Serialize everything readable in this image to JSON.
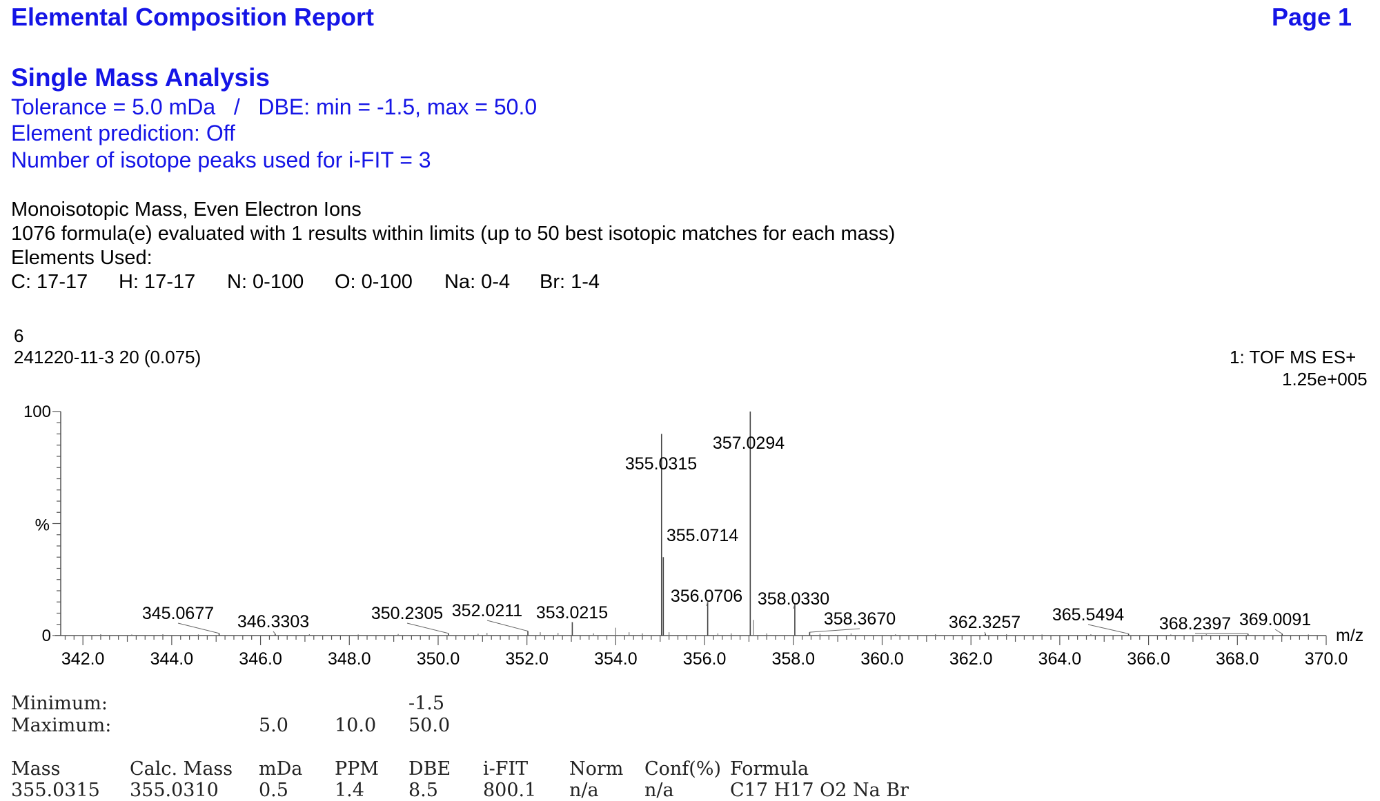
{
  "header": {
    "title": "Elemental Composition Report",
    "page": "Page 1"
  },
  "analysis": {
    "heading": "Single Mass Analysis",
    "tolerance_line": "Tolerance = 5.0 mDa   /   DBE: min = -1.5, max = 50.0",
    "element_prediction": "Element prediction: Off",
    "isotope_peaks": "Number of isotope peaks used for i-FIT = 3"
  },
  "info": {
    "mass_type": "Monoisotopic Mass, Even Electron Ions",
    "evaluated": "1076 formula(e) evaluated with 1 results within limits (up to 50 best isotopic matches for each mass)",
    "elements_used_label": "Elements Used:",
    "elements": [
      {
        "text": "C: 17-17"
      },
      {
        "text": "H: 17-17"
      },
      {
        "text": "N: 0-100"
      },
      {
        "text": "O: 0-100"
      },
      {
        "text": "Na: 0-4"
      },
      {
        "text": "Br: 1-4"
      }
    ]
  },
  "spectrum": {
    "sample_no": "6",
    "sample_id": "241220-11-3 20 (0.075)",
    "mode": "1: TOF MS ES+",
    "intensity": "1.25e+005"
  },
  "chart_data": {
    "type": "bar",
    "xlabel": "m/z",
    "ylabel": "%",
    "xlim": [
      341.5,
      370.0
    ],
    "ylim": [
      0,
      100
    ],
    "x_ticks": [
      342.0,
      344.0,
      346.0,
      348.0,
      350.0,
      352.0,
      354.0,
      356.0,
      358.0,
      360.0,
      362.0,
      364.0,
      366.0,
      368.0,
      370.0
    ],
    "x_tick_labels": [
      "342.0",
      "344.0",
      "346.0",
      "348.0",
      "350.0",
      "352.0",
      "354.0",
      "356.0",
      "358.0",
      "360.0",
      "362.0",
      "364.0",
      "366.0",
      "368.0",
      "370.0"
    ],
    "y_tick_labels": [
      "0",
      "100"
    ],
    "peaks": [
      {
        "mz": 345.0677,
        "intensity": 1.0,
        "label": "345.0677"
      },
      {
        "mz": 346.3303,
        "intensity": 0.8,
        "label": "346.3303"
      },
      {
        "mz": 350.2305,
        "intensity": 1.0,
        "label": "350.2305"
      },
      {
        "mz": 352.0211,
        "intensity": 2.0,
        "label": "352.0211"
      },
      {
        "mz": 353.0215,
        "intensity": 6.0,
        "label": "353.0215"
      },
      {
        "mz": 355.0315,
        "intensity": 90.0,
        "label": "355.0315"
      },
      {
        "mz": 355.0714,
        "intensity": 35.0,
        "label": "355.0714"
      },
      {
        "mz": 356.0706,
        "intensity": 15.0,
        "label": "356.0706"
      },
      {
        "mz": 357.0294,
        "intensity": 100.0,
        "label": "357.0294"
      },
      {
        "mz": 358.033,
        "intensity": 14.0,
        "label": "358.0330"
      },
      {
        "mz": 358.367,
        "intensity": 1.5,
        "label": "358.3670"
      },
      {
        "mz": 362.3257,
        "intensity": 0.8,
        "label": "362.3257"
      },
      {
        "mz": 365.5494,
        "intensity": 0.8,
        "label": "365.5494"
      },
      {
        "mz": 368.2397,
        "intensity": 0.8,
        "label": "368.2397"
      },
      {
        "mz": 369.0091,
        "intensity": 0.8,
        "label": "369.0091"
      }
    ],
    "minor_peaks": [
      {
        "mz": 342.4,
        "intensity": 0.6
      },
      {
        "mz": 343.1,
        "intensity": 0.5
      },
      {
        "mz": 343.8,
        "intensity": 0.6
      },
      {
        "mz": 344.6,
        "intensity": 0.5
      },
      {
        "mz": 347.1,
        "intensity": 0.6
      },
      {
        "mz": 348.2,
        "intensity": 0.5
      },
      {
        "mz": 349.1,
        "intensity": 0.7
      },
      {
        "mz": 350.9,
        "intensity": 0.8
      },
      {
        "mz": 351.1,
        "intensity": 1.2
      },
      {
        "mz": 352.3,
        "intensity": 1.5
      },
      {
        "mz": 352.7,
        "intensity": 1.2
      },
      {
        "mz": 353.5,
        "intensity": 1.0
      },
      {
        "mz": 354.0,
        "intensity": 3.5
      },
      {
        "mz": 354.3,
        "intensity": 1.5
      },
      {
        "mz": 354.6,
        "intensity": 1.0
      },
      {
        "mz": 355.2,
        "intensity": 1.5
      },
      {
        "mz": 356.3,
        "intensity": 1.0
      },
      {
        "mz": 356.6,
        "intensity": 1.0
      },
      {
        "mz": 357.1,
        "intensity": 7.0
      },
      {
        "mz": 357.4,
        "intensity": 1.0
      },
      {
        "mz": 358.6,
        "intensity": 0.8
      },
      {
        "mz": 359.3,
        "intensity": 1.0
      },
      {
        "mz": 360.3,
        "intensity": 0.6
      },
      {
        "mz": 361.2,
        "intensity": 0.6
      },
      {
        "mz": 362.8,
        "intensity": 0.6
      },
      {
        "mz": 363.6,
        "intensity": 0.5
      },
      {
        "mz": 364.7,
        "intensity": 0.6
      },
      {
        "mz": 366.5,
        "intensity": 0.5
      },
      {
        "mz": 367.3,
        "intensity": 0.6
      },
      {
        "mz": 369.6,
        "intensity": 0.5
      }
    ]
  },
  "limits": {
    "minimum_label": "Minimum:",
    "maximum_label": "Maximum:",
    "min_dbe": "-1.5",
    "max_mda": "5.0",
    "max_ppm": "10.0",
    "max_dbe": "50.0"
  },
  "results": {
    "columns": [
      "Mass",
      "Calc. Mass",
      "mDa",
      "PPM",
      "DBE",
      "i-FIT",
      "Norm",
      "Conf(%)",
      "Formula"
    ],
    "rows": [
      [
        "355.0315",
        "355.0310",
        "0.5",
        "1.4",
        "8.5",
        "800.1",
        "n/a",
        "n/a",
        "C17 H17 O2 Na Br"
      ]
    ]
  }
}
